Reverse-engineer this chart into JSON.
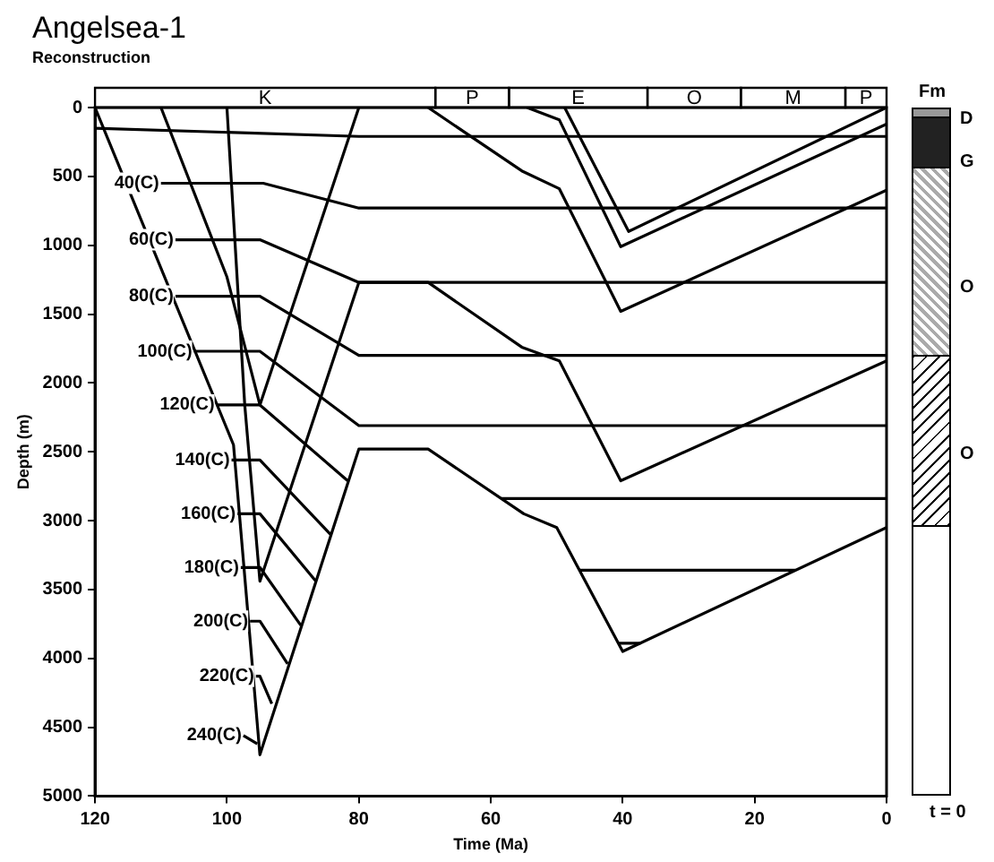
{
  "chart_data": {
    "type": "line",
    "title": "Angelsea-1",
    "subtitle": "Reconstruction",
    "xlabel": "Time (Ma)",
    "ylabel": "Depth (m)",
    "xlim": [
      120,
      0
    ],
    "xticks": [
      120,
      100,
      80,
      60,
      40,
      20,
      0
    ],
    "ylim": [
      5000,
      0
    ],
    "yticks": [
      0,
      500,
      1000,
      1500,
      2000,
      2500,
      3000,
      3500,
      4000,
      4500,
      5000
    ],
    "grid": false,
    "legend": false,
    "marker": "none",
    "line_style": "solid",
    "annotations": [
      "Fm",
      "D",
      "G",
      "O",
      "O",
      "t = 0",
      "K",
      "P",
      "E",
      "O",
      "M",
      "P"
    ],
    "series": [
      {
        "color": "#000000",
        "x": [
          120,
          99,
          95,
          80,
          69.5,
          55,
          50,
          40,
          0
        ],
        "values": [
          0,
          2450,
          4700,
          2480,
          2480,
          2950,
          3050,
          3950,
          3050
        ]
      },
      {
        "color": "#000000",
        "x": [
          110,
          100,
          95,
          80
        ],
        "values": [
          0,
          1230,
          2160,
          0
        ]
      },
      {
        "color": "#000000",
        "x": [
          100,
          97.3,
          95,
          80,
          69.5,
          55.3,
          49.6,
          40.3,
          0
        ],
        "values": [
          0,
          2160,
          3440,
          1270,
          1270,
          1740,
          1840,
          2710,
          1840
        ]
      },
      {
        "color": "#000000",
        "x": [
          69.5,
          55.3,
          49.6,
          40.3,
          0
        ],
        "values": [
          0,
          460,
          590,
          1480,
          600
        ]
      },
      {
        "color": "#000000",
        "x": [
          54.5,
          49.6,
          40.3,
          0
        ],
        "values": [
          0,
          90,
          1010,
          120
        ]
      },
      {
        "color": "#000000",
        "x": [
          48.8,
          39.1,
          0
        ],
        "values": [
          0,
          900,
          0
        ]
      },
      {
        "color": "#000000",
        "x": [
          120,
          80,
          0
        ],
        "values": [
          150,
          210,
          210
        ]
      },
      {
        "name": "40(C)",
        "color": "#000000",
        "x": [
          110,
          94.5,
          80,
          0
        ],
        "values": [
          550,
          550,
          730,
          730
        ]
      },
      {
        "name": "60(C)",
        "color": "#000000",
        "x": [
          107.8,
          95,
          80,
          0
        ],
        "values": [
          960,
          960,
          1270,
          1270
        ]
      },
      {
        "name": "80(C)",
        "color": "#000000",
        "x": [
          107.8,
          95,
          80,
          0
        ],
        "values": [
          1370,
          1370,
          1800,
          1800
        ]
      },
      {
        "name": "100(C)",
        "color": "#000000",
        "x": [
          105,
          95,
          80,
          0
        ],
        "values": [
          1770,
          1770,
          2310,
          2310
        ]
      },
      {
        "name": "120(C)",
        "color": "#000000",
        "x": [
          101.6,
          95,
          81.7,
          70,
          58.4,
          0
        ],
        "values": [
          2160,
          2160,
          2710,
          null,
          2840,
          2840
        ]
      },
      {
        "name": "140(C)",
        "color": "#000000",
        "x": [
          99.3,
          95,
          84.3,
          60,
          46.6,
          13.8
        ],
        "values": [
          2560,
          2560,
          3100,
          null,
          3360,
          3360
        ]
      },
      {
        "name": "160(C)",
        "color": "#000000",
        "x": [
          98.4,
          95,
          86.5,
          60,
          40.7,
          37.3
        ],
        "values": [
          2950,
          2950,
          3440,
          null,
          3890,
          3890
        ]
      },
      {
        "name": "180(C)",
        "color": "#000000",
        "x": [
          97.9,
          95,
          88.8
        ],
        "values": [
          3340,
          3340,
          3760
        ]
      },
      {
        "name": "200(C)",
        "color": "#000000",
        "x": [
          96.5,
          95,
          90.8
        ],
        "values": [
          3730,
          3730,
          4040
        ]
      },
      {
        "name": "220(C)",
        "color": "#000000",
        "x": [
          95.6,
          95,
          93.2
        ],
        "values": [
          4130,
          4130,
          4330
        ]
      },
      {
        "name": "240(C)",
        "color": "#000000",
        "x": [
          97.5,
          95.4
        ],
        "values": [
          4560,
          4620
        ]
      }
    ]
  }
}
